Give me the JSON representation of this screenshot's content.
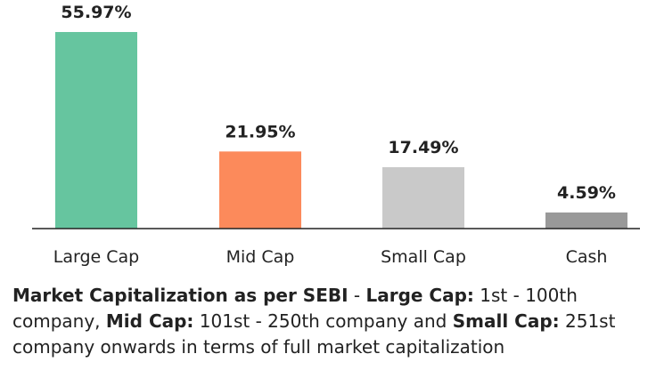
{
  "chart_data": {
    "type": "bar",
    "categories": [
      "Large Cap",
      "Mid Cap",
      "Small Cap",
      "Cash"
    ],
    "values": [
      55.97,
      21.95,
      17.49,
      4.59
    ],
    "value_labels": [
      "55.97%",
      "21.95%",
      "17.49%",
      "4.59%"
    ],
    "colors": [
      "#66c59f",
      "#fc8a5b",
      "#c9c9c9",
      "#999999"
    ],
    "ylim": [
      0,
      60
    ],
    "grid": false,
    "legend": "none"
  },
  "note": {
    "p1_bold": "Market Capitalization as per SEBI",
    "p1_text": " - ",
    "p2_bold": "Large Cap:",
    "p2_text": " 1st - 100th company, ",
    "p3_bold": "Mid Cap:",
    "p3_text": " 101st - 250th company and ",
    "p4_bold": "Small Cap:",
    "p4_text": " 251st company onwards in terms of full market capitalization"
  }
}
